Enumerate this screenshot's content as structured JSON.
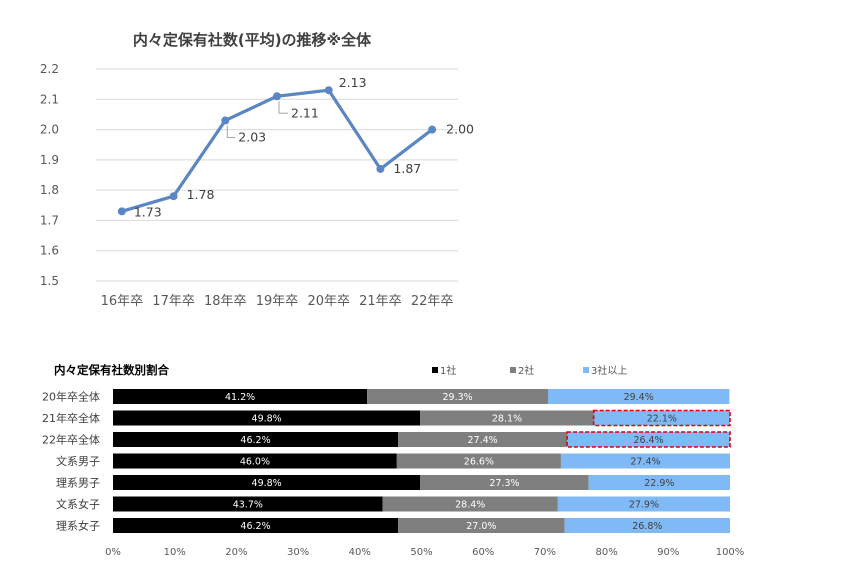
{
  "chart_data": [
    {
      "type": "line",
      "title": "内々定保有社数(平均)の推移※全体",
      "categories": [
        "16年卒",
        "17年卒",
        "18年卒",
        "19年卒",
        "20年卒",
        "21年卒",
        "22年卒"
      ],
      "values": [
        1.73,
        1.78,
        2.03,
        2.11,
        2.13,
        1.87,
        2.0
      ],
      "data_labels": [
        "1.73",
        "1.78",
        "2.03",
        "2.11",
        "2.13",
        "1.87",
        "2.00"
      ],
      "ylim": [
        1.5,
        2.2
      ],
      "y_ticks": [
        1.5,
        1.6,
        1.7,
        1.8,
        1.9,
        2.0,
        2.1,
        2.2
      ],
      "y_tick_labels": [
        "1.5",
        "1.6",
        "1.7",
        "1.8",
        "1.9",
        "2.0",
        "2.1",
        "2.2"
      ],
      "grid": true,
      "line_color": "#5b86c4"
    },
    {
      "type": "bar",
      "orientation": "horizontal-stacked-100",
      "title": "内々定保有社数別割合",
      "categories": [
        "20年卒全体",
        "21年卒全体",
        "22年卒全体",
        "文系男子",
        "理系男子",
        "文系女子",
        "理系女子"
      ],
      "series": [
        {
          "name": "1社",
          "color": "#000000",
          "label_color": "#ffffff",
          "values": [
            41.2,
            49.8,
            46.2,
            46.0,
            49.8,
            43.7,
            46.2
          ],
          "labels": [
            "41.2%",
            "49.8%",
            "46.2%",
            "46.0%",
            "49.8%",
            "43.7%",
            "46.2%"
          ]
        },
        {
          "name": "2社",
          "color": "#7f7f7f",
          "label_color": "#ffffff",
          "values": [
            29.3,
            28.1,
            27.4,
            26.6,
            27.3,
            28.4,
            27.0
          ],
          "labels": [
            "29.3%",
            "28.1%",
            "27.4%",
            "26.6%",
            "27.3%",
            "28.4%",
            "27.0%"
          ]
        },
        {
          "name": "3社以上",
          "color": "#7fbaf7",
          "label_color": "#404040",
          "values": [
            29.4,
            22.1,
            26.4,
            27.4,
            22.9,
            27.9,
            26.8
          ],
          "labels": [
            "29.4%",
            "22.1%",
            "26.4%",
            "27.4%",
            "22.9%",
            "27.9%",
            "26.8%"
          ]
        }
      ],
      "x_ticks": [
        0,
        10,
        20,
        30,
        40,
        50,
        60,
        70,
        80,
        90,
        100
      ],
      "x_tick_labels": [
        "0%",
        "10%",
        "20%",
        "30%",
        "40%",
        "50%",
        "60%",
        "70%",
        "80%",
        "90%",
        "100%"
      ],
      "xlim": [
        0,
        100
      ],
      "legend_position": "top",
      "highlighted_categories": [
        "21年卒全体",
        "22年卒全体"
      ],
      "highlighted_series": "3社以上",
      "highlight_color": "#e00000"
    }
  ]
}
